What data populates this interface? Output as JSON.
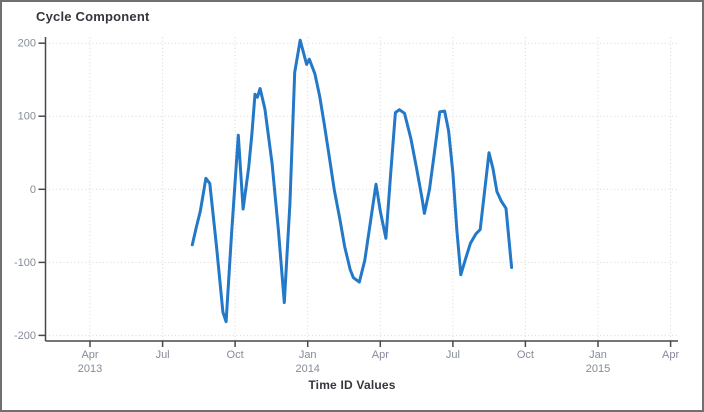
{
  "chart_data": {
    "type": "line",
    "title": "Cycle Component",
    "xlabel": "Time ID Values",
    "ylabel": "",
    "ylim": [
      -208,
      208
    ],
    "grid": "dotted, both axes",
    "legend": "none",
    "line_color": "#2378C8",
    "grid_color": "#d6d6d6",
    "axis_color": "#48484d",
    "tick_label_color": "#858b98",
    "y_ticks": [
      200,
      100,
      0,
      -100,
      -200
    ],
    "x_ticks": [
      {
        "label": "Apr",
        "year": "2013"
      },
      {
        "label": "Jul",
        "year": ""
      },
      {
        "label": "Oct",
        "year": ""
      },
      {
        "label": "Jan",
        "year": "2014"
      },
      {
        "label": "Apr",
        "year": ""
      },
      {
        "label": "Jul",
        "year": ""
      },
      {
        "label": "Oct",
        "year": ""
      },
      {
        "label": "Jan",
        "year": "2015"
      },
      {
        "label": "Apr",
        "year": ""
      }
    ],
    "points": [
      [
        "2013-08-08",
        -76
      ],
      [
        "2013-08-13",
        -52
      ],
      [
        "2013-08-18",
        -30
      ],
      [
        "2013-08-25",
        15
      ],
      [
        "2013-08-30",
        8
      ],
      [
        "2013-09-08",
        -78
      ],
      [
        "2013-09-16",
        -168
      ],
      [
        "2013-09-20",
        -181
      ],
      [
        "2013-09-27",
        -60
      ],
      [
        "2013-10-05",
        74
      ],
      [
        "2013-10-11",
        -27
      ],
      [
        "2013-10-18",
        30
      ],
      [
        "2013-10-22",
        76
      ],
      [
        "2013-10-26",
        130
      ],
      [
        "2013-10-29",
        126
      ],
      [
        "2013-11-02",
        138
      ],
      [
        "2013-11-08",
        110
      ],
      [
        "2013-11-17",
        35
      ],
      [
        "2013-11-25",
        -56
      ],
      [
        "2013-12-02",
        -155
      ],
      [
        "2013-12-09",
        -20
      ],
      [
        "2013-12-15",
        160
      ],
      [
        "2013-12-22",
        204
      ],
      [
        "2013-12-30",
        171
      ],
      [
        "2014-01-03",
        178
      ],
      [
        "2014-01-10",
        158
      ],
      [
        "2014-01-16",
        128
      ],
      [
        "2014-01-22",
        88
      ],
      [
        "2014-01-29",
        38
      ],
      [
        "2014-02-04",
        -1
      ],
      [
        "2014-02-11",
        -41
      ],
      [
        "2014-02-17",
        -78
      ],
      [
        "2014-02-24",
        -110
      ],
      [
        "2014-02-28",
        -121
      ],
      [
        "2014-03-05",
        -127
      ],
      [
        "2014-03-12",
        -97
      ],
      [
        "2014-03-19",
        -45
      ],
      [
        "2014-03-26",
        7
      ],
      [
        "2014-04-01",
        -30
      ],
      [
        "2014-04-08",
        -67
      ],
      [
        "2014-04-14",
        20
      ],
      [
        "2014-04-20",
        105
      ],
      [
        "2014-04-25",
        109
      ],
      [
        "2014-05-01",
        104
      ],
      [
        "2014-05-09",
        70
      ],
      [
        "2014-05-16",
        30
      ],
      [
        "2014-05-23",
        -12
      ],
      [
        "2014-05-26",
        -33
      ],
      [
        "2014-06-02",
        0
      ],
      [
        "2014-06-08",
        48
      ],
      [
        "2014-06-15",
        106
      ],
      [
        "2014-06-21",
        107
      ],
      [
        "2014-06-26",
        80
      ],
      [
        "2014-07-01",
        22
      ],
      [
        "2014-07-06",
        -55
      ],
      [
        "2014-07-11",
        -117
      ],
      [
        "2014-07-17",
        -95
      ],
      [
        "2014-07-23",
        -74
      ],
      [
        "2014-07-30",
        -61
      ],
      [
        "2014-08-05",
        -55
      ],
      [
        "2014-08-16",
        50
      ],
      [
        "2014-08-21",
        28
      ],
      [
        "2014-08-26",
        -3
      ],
      [
        "2014-09-01",
        -16
      ],
      [
        "2014-09-07",
        -26
      ],
      [
        "2014-09-14",
        -107
      ]
    ]
  },
  "ui": {
    "colors": {
      "background": "#ffffff",
      "window_border": "#707070",
      "title_text": "#34373c"
    }
  }
}
